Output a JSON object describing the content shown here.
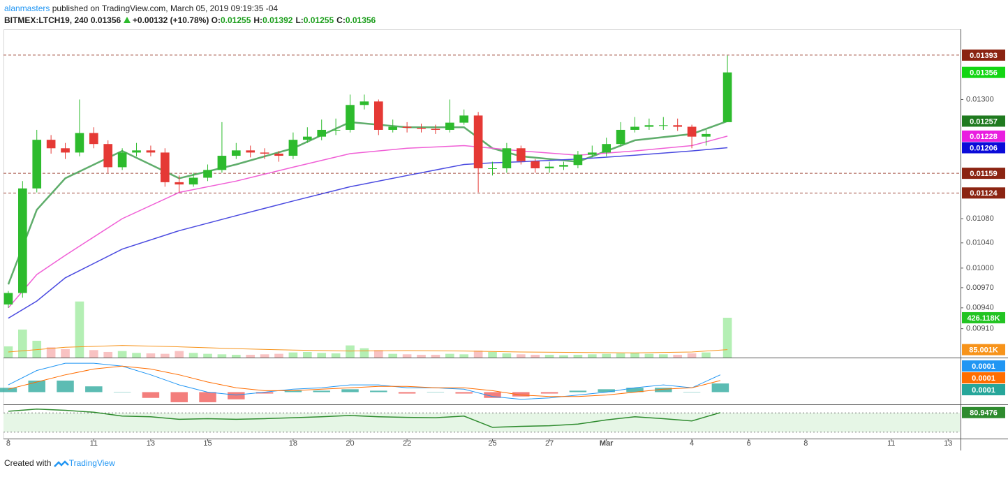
{
  "header": {
    "author": "alanmasters",
    "published": "published on TradingView.com, March 05, 2019 09:19:35 -04",
    "symbol": "BITMEX:LTCH19, 240",
    "last": "0.01356",
    "change": "+0.00132 (+10.78%)",
    "ohlc": [
      {
        "label": "O:",
        "value": "0.01255"
      },
      {
        "label": "H:",
        "value": "0.01392"
      },
      {
        "label": "L:",
        "value": "0.01255"
      },
      {
        "label": "C:",
        "value": "0.01356"
      }
    ]
  },
  "chart_data": {
    "type": "candlestick",
    "log_scale": true,
    "ylim": [
      0.0087,
      0.0145
    ],
    "yticks": [
      {
        "value": 0.013,
        "label": "0.01300"
      },
      {
        "value": 0.0108,
        "label": "0.01080"
      },
      {
        "value": 0.0104,
        "label": "0.01040"
      },
      {
        "value": 0.01,
        "label": "0.01000"
      },
      {
        "value": 0.0097,
        "label": "0.00970"
      },
      {
        "value": 0.0094,
        "label": "0.00940"
      },
      {
        "value": 0.0091,
        "label": "0.00910"
      }
    ],
    "xlim": [
      -0.17,
      33.41
    ],
    "xticks": [
      {
        "value": 0,
        "label": "8"
      },
      {
        "value": 3,
        "label": "11"
      },
      {
        "value": 5,
        "label": "13"
      },
      {
        "value": 7,
        "label": "15"
      },
      {
        "value": 10,
        "label": "18"
      },
      {
        "value": 12,
        "label": "20"
      },
      {
        "value": 14,
        "label": "22"
      },
      {
        "value": 17,
        "label": "25"
      },
      {
        "value": 19,
        "label": "27"
      },
      {
        "value": 21,
        "label": "Mar"
      },
      {
        "value": 24,
        "label": "4"
      },
      {
        "value": 26,
        "label": "6"
      },
      {
        "value": 28,
        "label": "8"
      },
      {
        "value": 31,
        "label": "11"
      },
      {
        "value": 33,
        "label": "13"
      }
    ],
    "x": [
      0,
      0.5,
      1,
      1.5,
      2,
      2.5,
      3,
      3.5,
      4,
      4.5,
      5,
      5.5,
      6,
      6.5,
      7,
      7.5,
      8,
      8.5,
      9,
      9.5,
      10,
      10.5,
      11,
      11.5,
      12,
      12.5,
      13,
      13.5,
      14,
      14.5,
      15,
      15.5,
      16,
      16.5,
      17,
      17.5,
      18,
      18.5,
      19,
      19.5,
      20,
      20.5,
      21,
      21.5,
      22,
      22.5,
      23,
      23.5,
      24,
      24.5,
      25.25
    ],
    "open": [
      0.00945,
      0.00962,
      0.01132,
      0.01221,
      0.01205,
      0.01197,
      0.01234,
      0.01213,
      0.0117,
      0.01197,
      0.01201,
      0.01197,
      0.01143,
      0.01139,
      0.01151,
      0.01165,
      0.01191,
      0.01201,
      0.01197,
      0.01195,
      0.01191,
      0.01221,
      0.01227,
      0.0124,
      0.0124,
      0.01289,
      0.01296,
      0.0124,
      0.01246,
      0.01244,
      0.01242,
      0.0124,
      0.01254,
      0.01268,
      0.01168,
      0.01168,
      0.01205,
      0.01181,
      0.01168,
      0.01171,
      0.01174,
      0.01193,
      0.01197,
      0.01213,
      0.0124,
      0.01246,
      0.01249,
      0.01249,
      0.01246,
      0.01227,
      0.01255
    ],
    "high": [
      0.00965,
      0.01145,
      0.0124,
      0.0123,
      0.01215,
      0.013,
      0.01245,
      0.0122,
      0.01205,
      0.01215,
      0.0121,
      0.01205,
      0.01155,
      0.0116,
      0.01175,
      0.01255,
      0.01215,
      0.0121,
      0.01205,
      0.012,
      0.01235,
      0.01245,
      0.0126,
      0.01262,
      0.0131,
      0.0131,
      0.013,
      0.0126,
      0.01255,
      0.01252,
      0.0125,
      0.013,
      0.0128,
      0.01275,
      0.0118,
      0.01215,
      0.0121,
      0.01185,
      0.0118,
      0.0118,
      0.012,
      0.0121,
      0.01225,
      0.01255,
      0.01265,
      0.01262,
      0.01265,
      0.01262,
      0.0125,
      0.0124,
      0.01392
    ],
    "low": [
      0.0094,
      0.00955,
      0.01125,
      0.01195,
      0.01185,
      0.0119,
      0.01205,
      0.0116,
      0.01165,
      0.0119,
      0.0119,
      0.01135,
      0.01125,
      0.01135,
      0.01145,
      0.0116,
      0.01185,
      0.01188,
      0.01185,
      0.0118,
      0.01185,
      0.01215,
      0.0122,
      0.0123,
      0.01235,
      0.0128,
      0.0123,
      0.01235,
      0.01235,
      0.01235,
      0.01232,
      0.01235,
      0.0125,
      0.01125,
      0.01155,
      0.0116,
      0.01175,
      0.0116,
      0.0116,
      0.01165,
      0.01168,
      0.01188,
      0.0119,
      0.01208,
      0.01235,
      0.0124,
      0.0124,
      0.01238,
      0.01205,
      0.0121,
      0.01255
    ],
    "close": [
      0.00962,
      0.01132,
      0.01221,
      0.01205,
      0.01197,
      0.01234,
      0.01213,
      0.0117,
      0.01197,
      0.01201,
      0.01197,
      0.01143,
      0.01139,
      0.01151,
      0.01165,
      0.01191,
      0.01201,
      0.01197,
      0.01195,
      0.01191,
      0.01221,
      0.01227,
      0.0124,
      0.0124,
      0.01289,
      0.01296,
      0.0124,
      0.01246,
      0.01244,
      0.01242,
      0.0124,
      0.01254,
      0.01268,
      0.01168,
      0.01168,
      0.01205,
      0.01181,
      0.01168,
      0.01171,
      0.01174,
      0.01193,
      0.01197,
      0.01213,
      0.0124,
      0.01246,
      0.01249,
      0.01249,
      0.01246,
      0.01227,
      0.01232,
      0.01356
    ],
    "up_color": "#2dbb2d",
    "down_color": "#e53935",
    "last_color": "#13d613",
    "series": [
      {
        "color": "#5fad6b",
        "x": [
          0,
          1,
          2,
          4,
          6,
          8,
          10,
          12,
          14,
          16,
          17,
          18,
          20,
          22,
          24,
          25.25
        ],
        "values": [
          0.00975,
          0.01095,
          0.0115,
          0.012,
          0.0115,
          0.01175,
          0.01205,
          0.01255,
          0.01245,
          0.01245,
          0.01205,
          0.0119,
          0.0118,
          0.0122,
          0.01232,
          0.01257
        ]
      },
      {
        "color": "#f05fd6",
        "x": [
          0,
          1,
          2,
          4,
          6,
          8,
          10,
          12,
          14,
          16,
          17,
          18,
          20,
          22,
          24,
          25.25
        ],
        "values": [
          0.0094,
          0.0099,
          0.0102,
          0.0108,
          0.01125,
          0.01145,
          0.0117,
          0.01195,
          0.01205,
          0.0121,
          0.01205,
          0.012,
          0.01192,
          0.012,
          0.0121,
          0.01228
        ]
      },
      {
        "color": "#4a4ae0",
        "x": [
          0,
          1,
          2,
          4,
          6,
          8,
          10,
          12,
          14,
          16,
          17,
          18,
          20,
          22,
          24,
          25.25
        ],
        "values": [
          0.00925,
          0.0095,
          0.00985,
          0.0103,
          0.0106,
          0.01085,
          0.0111,
          0.01135,
          0.01155,
          0.01175,
          0.01178,
          0.0118,
          0.01185,
          0.01192,
          0.012,
          0.01206
        ]
      }
    ],
    "series_label_colors": [
      "#1f7a1f",
      "#e91ee0",
      "#0b0bd9"
    ],
    "hlines": [
      0.01393,
      0.01159,
      0.01124
    ],
    "hline_color": "#8b2412",
    "volume": {
      "ylim": [
        0,
        650000
      ],
      "color_up": "#b4efb4",
      "color_down": "#f8c2c2",
      "label_color": "#23c423",
      "values": [
        120000,
        300000,
        180000,
        110000,
        90000,
        600000,
        80000,
        60000,
        70000,
        50000,
        45000,
        40000,
        70000,
        50000,
        40000,
        35000,
        30000,
        30000,
        35000,
        40000,
        55000,
        60000,
        50000,
        45000,
        130000,
        100000,
        80000,
        40000,
        35000,
        30000,
        30000,
        40000,
        35000,
        75000,
        60000,
        45000,
        35000,
        30000,
        30000,
        25000,
        30000,
        35000,
        40000,
        45000,
        50000,
        40000,
        35000,
        30000,
        45000,
        55000,
        426118
      ],
      "value_labels": [
        null,
        null,
        null,
        null,
        null,
        null,
        null,
        null,
        null,
        null,
        null,
        null,
        null,
        null,
        null,
        null,
        null,
        null,
        null,
        null,
        null,
        null,
        null,
        null,
        null,
        null,
        null,
        null,
        null,
        null,
        null,
        null,
        null,
        null,
        null,
        null,
        null,
        null,
        null,
        null,
        null,
        null,
        null,
        null,
        null,
        null,
        null,
        null,
        null,
        null,
        "426.118K"
      ],
      "ma": {
        "color": "#f7931a",
        "x": [
          0,
          2,
          4,
          6,
          8,
          10,
          12,
          14,
          16,
          18,
          20,
          22,
          24,
          25.25
        ],
        "values": [
          60000,
          110000,
          130000,
          115000,
          95000,
          80000,
          70000,
          75000,
          70000,
          60000,
          55000,
          50000,
          60000,
          85001
        ],
        "value_labels": [
          null,
          null,
          null,
          null,
          null,
          null,
          null,
          null,
          null,
          null,
          null,
          null,
          null,
          "85.001K"
        ]
      }
    },
    "macd": {
      "x": [
        0,
        1,
        2,
        3,
        4,
        5,
        6,
        7,
        8,
        9,
        10,
        11,
        12,
        13,
        14,
        15,
        16,
        17,
        18,
        19,
        20,
        21,
        22,
        23,
        24,
        25
      ],
      "ylim": [
        -8e-05,
        0.00022
      ],
      "line": {
        "color": "#2196f3",
        "values": [
          5e-05,
          0.00015,
          0.0002,
          0.0002,
          0.00018,
          0.00012,
          5e-05,
          0,
          -2e-05,
          0,
          2e-05,
          3e-05,
          5e-05,
          5e-05,
          3e-05,
          3e-05,
          2e-05,
          -3e-05,
          -5e-05,
          -4e-05,
          -2e-05,
          0,
          3e-05,
          5e-05,
          3e-05,
          0.00012
        ],
        "value_labels": [
          null,
          null,
          null,
          null,
          null,
          null,
          null,
          null,
          null,
          null,
          null,
          null,
          null,
          null,
          null,
          null,
          null,
          null,
          null,
          null,
          null,
          null,
          null,
          null,
          null,
          "0.0001"
        ]
      },
      "signal": {
        "color": "#ff6d00",
        "values": [
          2e-05,
          7e-05,
          0.00012,
          0.00016,
          0.00018,
          0.00016,
          0.00012,
          7e-05,
          3e-05,
          1e-05,
          1e-05,
          2e-05,
          3e-05,
          4e-05,
          4e-05,
          3e-05,
          3e-05,
          1e-05,
          -2e-05,
          -3e-05,
          -3e-05,
          -2e-05,
          0,
          2e-05,
          3e-05,
          8e-05
        ],
        "value_labels": [
          null,
          null,
          null,
          null,
          null,
          null,
          null,
          null,
          null,
          null,
          null,
          null,
          null,
          null,
          null,
          null,
          null,
          null,
          null,
          null,
          null,
          null,
          null,
          null,
          null,
          "0.0001"
        ]
      },
      "histogram": {
        "color_pos": "#26a69a",
        "color_neg": "#ef5350",
        "values": [
          3e-05,
          8e-05,
          8e-05,
          4e-05,
          0,
          -4e-05,
          -7e-05,
          -7e-05,
          -5e-05,
          -1e-05,
          1e-05,
          1e-05,
          2e-05,
          1e-05,
          -1e-05,
          0,
          -1e-05,
          -4e-05,
          -3e-05,
          -1e-05,
          1e-05,
          2e-05,
          3e-05,
          3e-05,
          0,
          6e-05
        ],
        "value_labels": [
          null,
          null,
          null,
          null,
          null,
          null,
          null,
          null,
          null,
          null,
          null,
          null,
          null,
          null,
          null,
          null,
          null,
          null,
          null,
          null,
          null,
          null,
          null,
          null,
          null,
          "0.0001"
        ]
      }
    },
    "rsi": {
      "x": [
        0,
        1,
        2,
        3,
        4,
        5,
        6,
        7,
        8,
        9,
        10,
        11,
        12,
        13,
        14,
        15,
        16,
        17,
        18,
        19,
        20,
        21,
        22,
        23,
        24,
        25
      ],
      "ylim": [
        0,
        100
      ],
      "band": [
        20,
        80
      ],
      "color": "#2e8b2e",
      "values": [
        85,
        92,
        88,
        82,
        70,
        68,
        60,
        62,
        60,
        62,
        65,
        68,
        72,
        68,
        66,
        65,
        70,
        35,
        38,
        40,
        45,
        58,
        68,
        62,
        55,
        80.9476
      ]
    }
  },
  "footer": {
    "created": "Created with",
    "brand": "TradingView"
  }
}
